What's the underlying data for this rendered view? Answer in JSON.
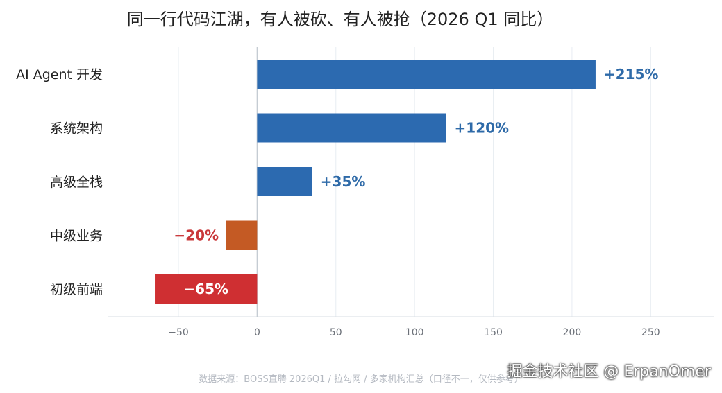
{
  "chart_data": {
    "type": "bar",
    "orientation": "horizontal",
    "title": "同一行代码江湖，有人被砍、有人被抢（2026 Q1 同比）",
    "categories": [
      "AI Agent 开发",
      "系统架构",
      "高级全栈",
      "中级业务",
      "初级前端"
    ],
    "values": [
      215,
      120,
      35,
      -20,
      -65
    ],
    "value_labels": [
      "+215%",
      "+120%",
      "+35%",
      "−20%",
      "−65%"
    ],
    "colors": [
      "#2c6ab0",
      "#2c6ab0",
      "#2c6ab0",
      "#c45a24",
      "#cf2f32"
    ],
    "label_colors": [
      "#2e6aa8",
      "#2e6aa8",
      "#2e6aa8",
      "#c9383a",
      "#ffffff"
    ],
    "xlim": [
      -95,
      290
    ],
    "xticks": [
      -50,
      0,
      50,
      100,
      150,
      200,
      250
    ],
    "xtick_labels": [
      "−50",
      "0",
      "50",
      "100",
      "150",
      "200",
      "250"
    ],
    "grid": true,
    "legend": "none"
  },
  "footer": {
    "source": "数据来源：BOSS直聘 2026Q1 / 拉勾网 / 多家机构汇总（口径不一，仅供参考）",
    "watermark": "掘金技术社区 @ ErpanOmer"
  }
}
